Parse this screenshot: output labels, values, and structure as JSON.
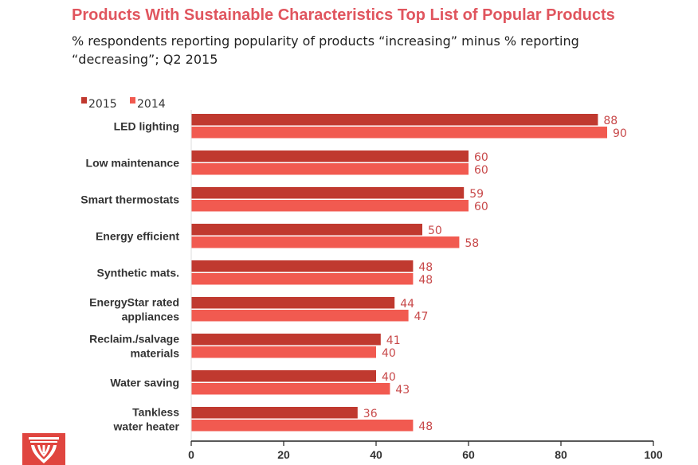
{
  "title": "Products With Sustainable Characteristics Top List of Popular Products",
  "subtitle": "% respondents reporting popularity of products “increasing” minus % reporting “decreasing”; Q2 2015",
  "colors": {
    "title": "#e0555e",
    "series_2015": "#c0392f",
    "series_2014": "#f15a50",
    "value_label": "#c8494a",
    "axis": "#222222"
  },
  "logo_icon": "aia-column-logo-icon",
  "chart_data": {
    "type": "bar",
    "orientation": "horizontal",
    "categories": [
      "LED lighting",
      "Low maintenance",
      "Smart thermostats",
      "Energy efficient",
      "Synthetic mats.",
      "EnergyStar rated appliances",
      "Reclaim./salvage materials",
      "Water saving",
      "Tankless water heater"
    ],
    "category_lines": [
      [
        "LED lighting"
      ],
      [
        "Low maintenance"
      ],
      [
        "Smart thermostats"
      ],
      [
        "Energy efficient"
      ],
      [
        "Synthetic mats."
      ],
      [
        "EnergyStar rated",
        "appliances"
      ],
      [
        "Reclaim./salvage",
        "materials"
      ],
      [
        "Water saving"
      ],
      [
        "Tankless",
        "water heater"
      ]
    ],
    "series": [
      {
        "name": "2015",
        "color": "#c0392f",
        "values": [
          88,
          60,
          59,
          50,
          48,
          44,
          41,
          40,
          36
        ]
      },
      {
        "name": "2014",
        "color": "#f15a50",
        "values": [
          90,
          60,
          60,
          58,
          48,
          47,
          40,
          43,
          48
        ]
      }
    ],
    "xlim": [
      0,
      100
    ],
    "xticks": [
      0,
      20,
      40,
      60,
      80,
      100
    ],
    "data_labels": true,
    "legend": "top-left",
    "grid": false
  }
}
